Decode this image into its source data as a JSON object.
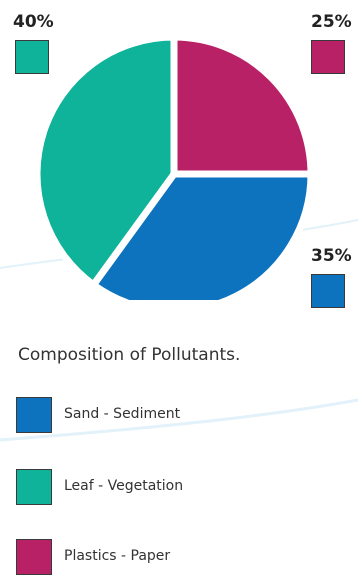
{
  "chart_data": {
    "type": "pie",
    "caption": "Composition of Pollutants.",
    "slices": [
      {
        "name": "Plastics - Paper",
        "value": 25,
        "label": "25%",
        "color": "#b92167"
      },
      {
        "name": "Sand - Sediment",
        "value": 35,
        "label": "35%",
        "color": "#0d73be"
      },
      {
        "name": "Leaf - Vegetation",
        "value": 40,
        "label": "40%",
        "color": "#0fb39a"
      }
    ],
    "legend_order": [
      "Sand - Sediment",
      "Leaf - Vegetation",
      "Plastics - Paper"
    ],
    "legend_placement": "bottom"
  }
}
